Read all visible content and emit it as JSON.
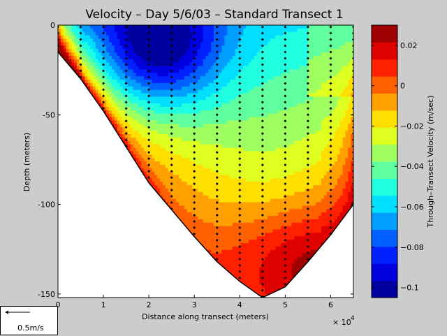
{
  "chart_data": {
    "type": "heatmap",
    "title": "Velocity – Day 5/6/03 – Standard Transect 1",
    "xlabel": "Distance along transect (meters)",
    "ylabel": "Depth (meters)",
    "x_exponent_label": "× 10",
    "x_exponent": "4",
    "xlim": [
      0,
      65000
    ],
    "ylim": [
      -152,
      0
    ],
    "x_ticks": [
      0,
      1,
      2,
      3,
      4,
      5,
      6
    ],
    "y_ticks": [
      0,
      -50,
      -100,
      -150
    ],
    "colorbar": {
      "label": "Through–Transect Velocity (m/sec)",
      "range": [
        -0.105,
        0.03
      ],
      "ticks": [
        "0.02",
        "0",
        "−0.02",
        "−0.04",
        "−0.06",
        "−0.08",
        "−0.1"
      ],
      "tick_values": [
        0.02,
        0,
        -0.02,
        -0.04,
        -0.06,
        -0.08,
        -0.1
      ],
      "colormap": "jet"
    },
    "bottom_profile": [
      {
        "x": 0,
        "depth": -15
      },
      {
        "x": 5000,
        "depth": -30
      },
      {
        "x": 10000,
        "depth": -48
      },
      {
        "x": 15000,
        "depth": -68
      },
      {
        "x": 20000,
        "depth": -88
      },
      {
        "x": 25000,
        "depth": -103
      },
      {
        "x": 30000,
        "depth": -118
      },
      {
        "x": 35000,
        "depth": -132
      },
      {
        "x": 40000,
        "depth": -143
      },
      {
        "x": 45000,
        "depth": -152
      },
      {
        "x": 50000,
        "depth": -146
      },
      {
        "x": 55000,
        "depth": -132
      },
      {
        "x": 60000,
        "depth": -117
      },
      {
        "x": 65000,
        "depth": -100
      }
    ],
    "velocity_field_description": {
      "core_min": {
        "x": 22000,
        "depth": -12,
        "value": -0.1
      },
      "deep_max": {
        "x": 52000,
        "depth": -130,
        "value": 0.005
      },
      "left_edge_max": {
        "value": 0.025
      },
      "right_bottom_max": {
        "value": 0.015
      }
    },
    "sample_columns_x": [
      0,
      5000,
      10000,
      15000,
      20000,
      25000,
      30000,
      35000,
      40000,
      45000,
      50000,
      55000,
      60000,
      65000
    ]
  },
  "scale_legend": {
    "label": "0.5m/s"
  }
}
